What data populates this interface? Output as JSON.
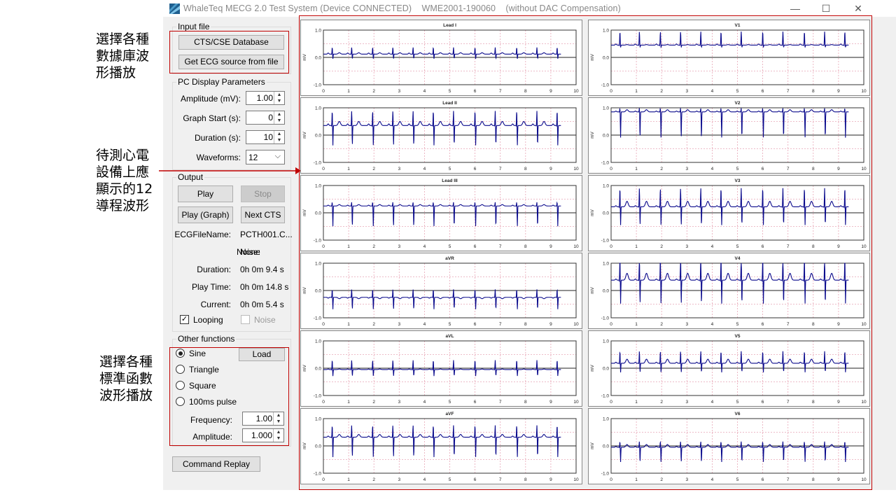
{
  "window": {
    "title": "WhaleTeq MECG 2.0 Test System (Device CONNECTED)    WME2001-190060    (without DAC Compensation)",
    "controls": {
      "minimize": "—",
      "maximize": "☐",
      "close": "✕"
    }
  },
  "annotations": {
    "input": [
      "選擇各種",
      "數據庫波",
      "形播放"
    ],
    "display": [
      "待測心電",
      "設備上應",
      "顯示的12",
      "導程波形"
    ],
    "functions": [
      "選擇各種",
      "標準函數",
      "波形播放"
    ]
  },
  "input_file": {
    "title": "Input file",
    "db_button": "CTS/CSE Database",
    "file_button": "Get ECG source from file"
  },
  "display_params": {
    "title": "PC Display Parameters",
    "amplitude_label": "Amplitude (mV):",
    "amplitude_value": "1.00",
    "graph_start_label": "Graph Start (s):",
    "graph_start_value": "0",
    "duration_label": "Duration (s):",
    "duration_value": "10",
    "waveforms_label": "Waveforms:",
    "waveforms_value": "12"
  },
  "output": {
    "title": "Output",
    "play": "Play",
    "stop": "Stop",
    "play_graph": "Play (Graph)",
    "next_cts": "Next CTS",
    "file_label": "ECGFileName:",
    "file_value": "PCTH001.C...",
    "noise_label": "Noise:",
    "noise_value": "None",
    "duration_label": "Duration:",
    "duration_value": "0h 0m 9.4 s",
    "playtime_label": "Play Time:",
    "playtime_value": "0h 0m 14.8 s",
    "current_label": "Current:",
    "current_value": "0h 0m 5.4 s",
    "looping_label": "Looping",
    "looping_checked": true,
    "noise_check_label": "Noise",
    "noise_checked": false
  },
  "other_functions": {
    "title": "Other functions",
    "sine": "Sine",
    "triangle": "Triangle",
    "square": "Square",
    "pulse": "100ms pulse",
    "selected": "Sine",
    "load": "Load",
    "frequency_label": "Frequency:",
    "frequency_value": "1.00",
    "amplitude_label": "Amplitude:",
    "amplitude_value": "1.000"
  },
  "command_replay": "Command Replay",
  "chart_data": {
    "type": "line",
    "xlim": [
      0,
      10
    ],
    "ylim": [
      -1.0,
      1.0
    ],
    "x_ticks": [
      0,
      1,
      2,
      3,
      4,
      5,
      6,
      7,
      8,
      9,
      10
    ],
    "y_ticks": [
      "1.0",
      "0.0",
      "-1.0"
    ],
    "ylabel": "mV",
    "data_end_s": 9.4,
    "grid": true,
    "color": "#0a0a8c",
    "grid_color": "#e8a6b6",
    "leads": [
      {
        "name": "Lead I",
        "baseline": 0.12,
        "r": 0.25,
        "s": -0.18,
        "t": 0.05,
        "p": 0.04
      },
      {
        "name": "V1",
        "baseline": 0.45,
        "r": 0.5,
        "s": -0.1,
        "t": 0.02,
        "p": 0.04
      },
      {
        "name": "Lead II",
        "baseline": 0.35,
        "r": 0.55,
        "s": -0.75,
        "t": 0.15,
        "p": 0.06
      },
      {
        "name": "V2",
        "baseline": 0.85,
        "r": 0.15,
        "s": -0.95,
        "t": 0.08,
        "p": 0.03
      },
      {
        "name": "Lead III",
        "baseline": 0.25,
        "r": 0.15,
        "s": -0.75,
        "t": 0.05,
        "p": 0.03
      },
      {
        "name": "V3",
        "baseline": 0.22,
        "r": 0.7,
        "s": -0.7,
        "t": 0.2,
        "p": 0.04
      },
      {
        "name": "aVR",
        "baseline": -0.25,
        "r": 0.3,
        "s": -0.45,
        "t": -0.05,
        "p": -0.03
      },
      {
        "name": "V4",
        "baseline": 0.38,
        "r": 0.95,
        "s": -0.9,
        "t": 0.25,
        "p": 0.04
      },
      {
        "name": "aVL",
        "baseline": -0.05,
        "r": 0.35,
        "s": -0.25,
        "t": 0.02,
        "p": 0.02
      },
      {
        "name": "V5",
        "baseline": 0.18,
        "r": 0.45,
        "s": -0.35,
        "t": 0.15,
        "p": 0.04
      },
      {
        "name": "aVF",
        "baseline": 0.32,
        "r": 0.45,
        "s": -0.75,
        "t": 0.1,
        "p": 0.04
      },
      {
        "name": "V6",
        "baseline": -0.05,
        "r": 0.22,
        "s": -0.55,
        "t": 0.1,
        "p": 0.03
      }
    ],
    "beat_times": [
      0.35,
      1.12,
      1.95,
      2.75,
      3.55,
      4.35,
      5.15,
      6.0,
      6.8,
      7.65,
      8.45,
      9.25
    ]
  }
}
